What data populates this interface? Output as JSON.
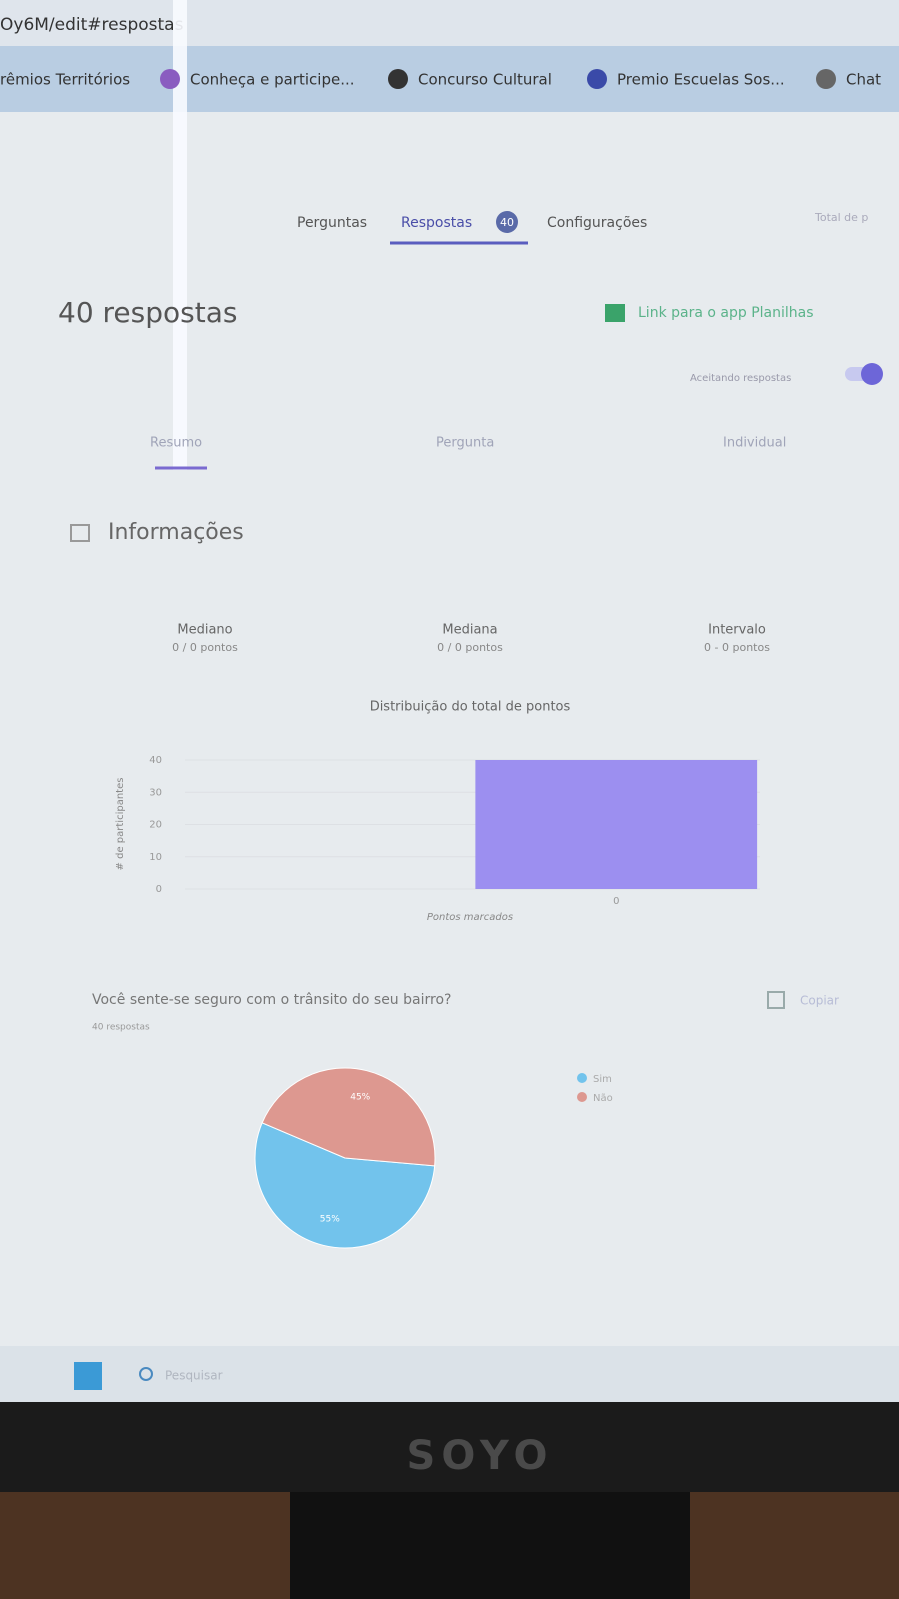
{
  "browser": {
    "url": "Oy6M/edit#respostas",
    "bookmarks": [
      "rêmios Territórios",
      "Conheça e participe...",
      "Concurso Cultural",
      "Premio Escuelas Sos...",
      "Chat"
    ]
  },
  "tabs": {
    "items": [
      "Perguntas",
      "Respostas",
      "Configurações"
    ],
    "badge": 40,
    "total": "Total de p"
  },
  "summary": {
    "title": "40 respostas",
    "sheets_link": "Link para o app Planilhas",
    "accepting": "Aceitando respostas",
    "subtabs": [
      "Resumo",
      "Pergunta",
      "Individual"
    ]
  },
  "insights": {
    "title": "Informações",
    "stats": [
      {
        "label": "Mediano",
        "value": "0 / 0 pontos"
      },
      {
        "label": "Mediana",
        "value": "0 / 0 pontos"
      },
      {
        "label": "Intervalo",
        "value": "0 - 0 pontos"
      }
    ]
  },
  "chart_data": [
    {
      "type": "bar",
      "title": "Distribuição do total de pontos",
      "y_label": "# de participantes",
      "x_label": "Pontos marcados",
      "categories": [
        null,
        "0"
      ],
      "values": [
        null,
        40
      ],
      "color": "#9c8ff0",
      "ylim": [
        0,
        40
      ],
      "yticks": [
        0,
        10,
        20,
        30,
        40
      ],
      "grid": true
    },
    {
      "type": "pie",
      "title": "Você sente-se seguro com o trânsito do seu bairro?",
      "subtitle": "40 respostas",
      "categories": [
        "Sim",
        "Não"
      ],
      "values": [
        55,
        45
      ],
      "value_labels": [
        "55%",
        "45%"
      ],
      "colors": [
        "#72c3ec",
        "#dd9890"
      ],
      "legend": "right"
    }
  ],
  "question_card": {
    "copy": "Copiar"
  },
  "taskbar": {
    "search": "Pesquisar"
  },
  "monitor": {
    "brand": "SOYO"
  }
}
